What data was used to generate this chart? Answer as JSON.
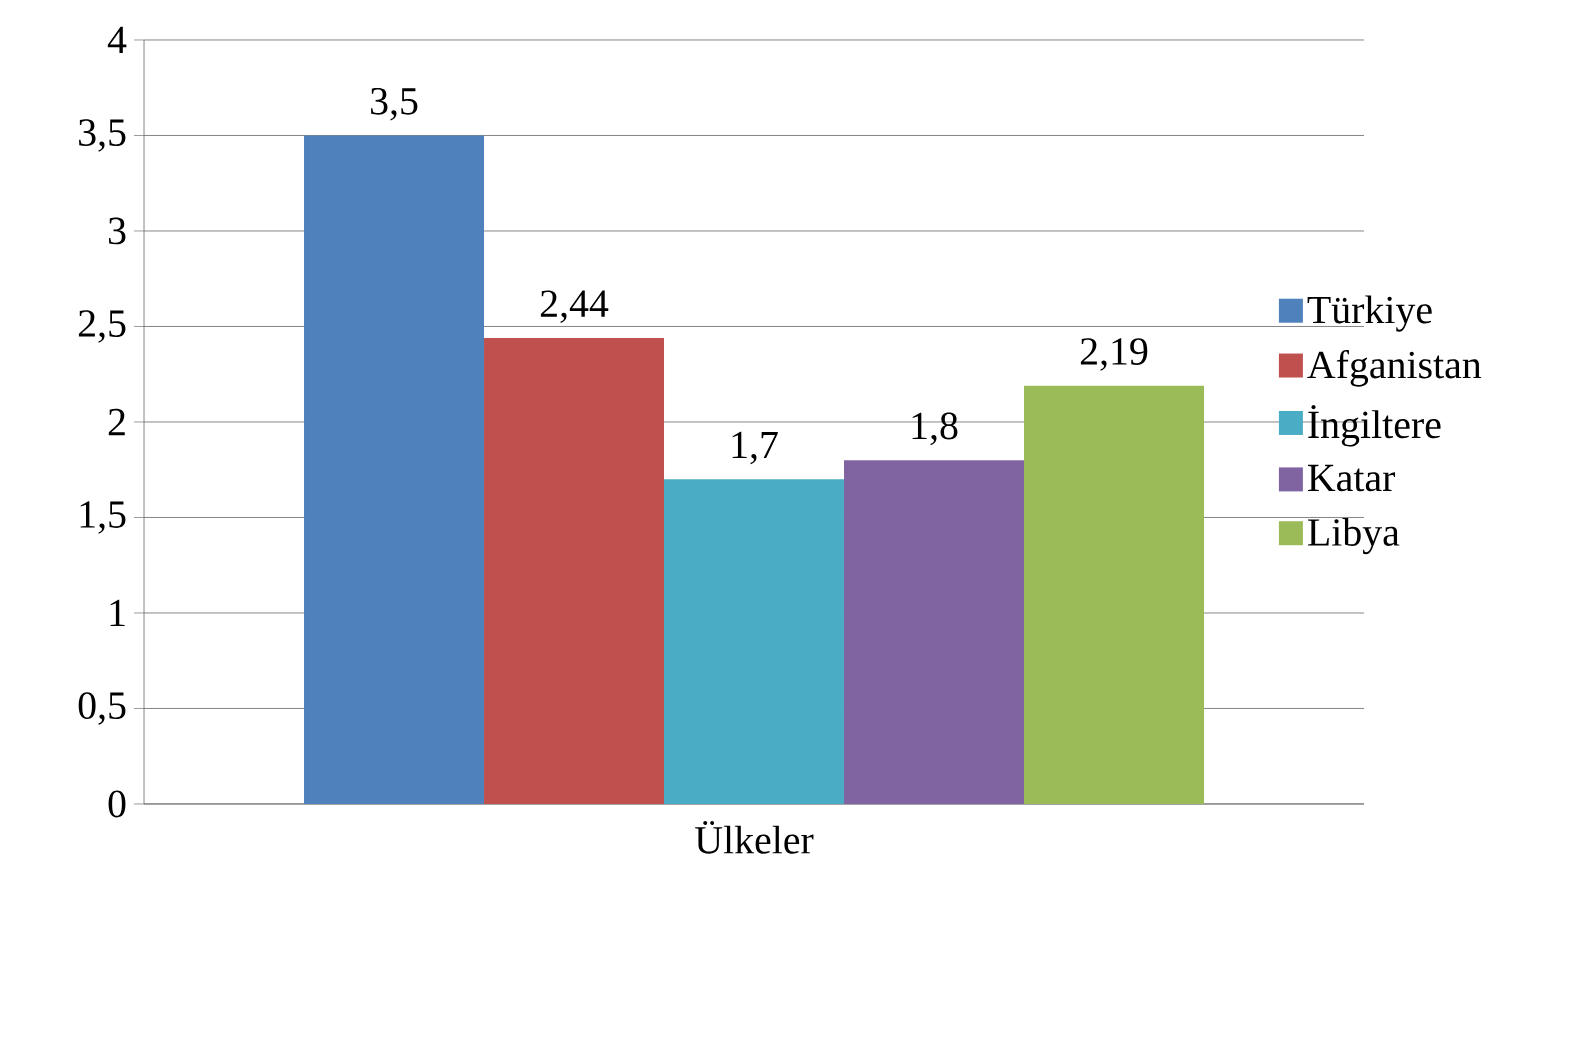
{
  "chart_data": {
    "type": "bar",
    "categories": [
      "Ülkeler"
    ],
    "series": [
      {
        "name": "Türkiye",
        "color": "#4f81bd",
        "values": [
          3.5
        ],
        "value_labels": [
          "3,5"
        ]
      },
      {
        "name": "Afganistan",
        "color": "#c0504d",
        "values": [
          2.44
        ],
        "value_labels": [
          "2,44"
        ]
      },
      {
        "name": "İngiltere",
        "color": "#4bacc6",
        "values": [
          1.7
        ],
        "value_labels": [
          "1,7"
        ]
      },
      {
        "name": "Katar",
        "color": "#8064a2",
        "values": [
          1.8
        ],
        "value_labels": [
          "1,8"
        ]
      },
      {
        "name": "Libya",
        "color": "#9bbb59",
        "values": [
          2.19
        ],
        "value_labels": [
          "2,19"
        ]
      }
    ],
    "ylim": [
      0,
      4
    ],
    "yticks": [
      0,
      {
        "value": 0.5,
        "label": "0,5"
      },
      1,
      {
        "value": 1.5,
        "label": "1,5"
      },
      2,
      {
        "value": 2.5,
        "label": "2,5"
      },
      3,
      {
        "value": 3.5,
        "label": "3,5"
      },
      4
    ],
    "grid": "y",
    "legend": "right"
  }
}
